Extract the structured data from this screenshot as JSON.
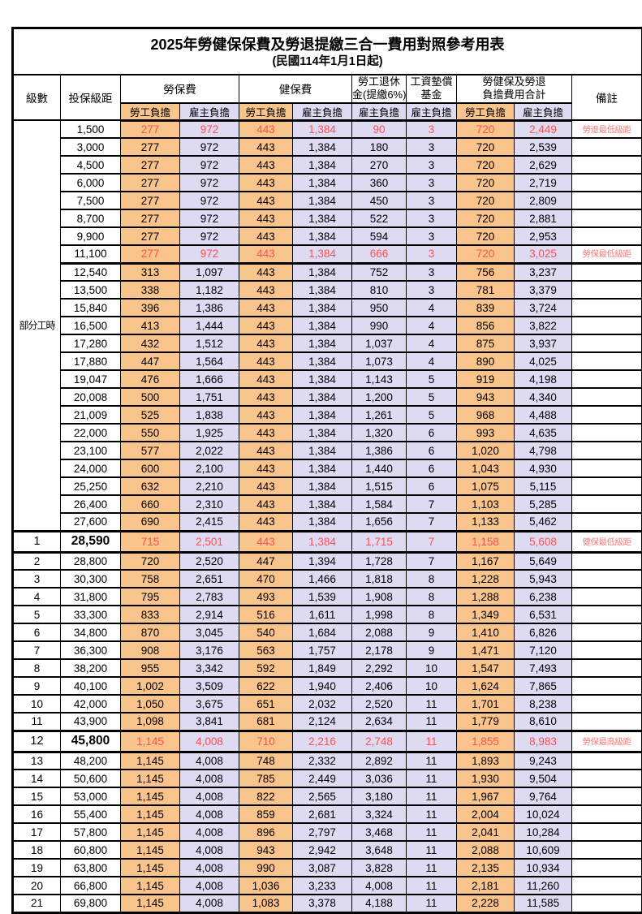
{
  "page": {
    "title_line1": "2025年勞健保保費及勞退提繳三合一費用對照參考用表",
    "title_line2": "(民國114年1月1日起)"
  },
  "columns": {
    "level": "級數",
    "bracket": "投保級距",
    "labor_fee": "勞保費",
    "health_fee": "健保費",
    "pension_line1": "勞工退休",
    "pension_line2": "金(提繳6%)",
    "wage_fund_line1": "工資墊償",
    "wage_fund_line2": "基金",
    "total_line1": "勞健保及勞退",
    "total_line2": "負擔費用合計",
    "remark": "備註",
    "employee_label": "勞工負擔",
    "employer_label": "雇主負擔"
  },
  "part_time": {
    "label": "部分工時",
    "row_span": 23
  },
  "colors": {
    "employee_bg": "#F9C38C",
    "employer_bg": "#DDDAF2",
    "highlight_text": "#FF5050",
    "remark_text": "#F37C7C"
  },
  "rows": [
    {
      "level": "",
      "bracket": "1,500",
      "cells": [
        "277",
        "972",
        "443",
        "1,384",
        "90",
        "3",
        "720",
        "2,449"
      ],
      "remark": "勞退最低級距",
      "red": true
    },
    {
      "level": "",
      "bracket": "3,000",
      "cells": [
        "277",
        "972",
        "443",
        "1,384",
        "180",
        "3",
        "720",
        "2,539"
      ],
      "remark": ""
    },
    {
      "level": "",
      "bracket": "4,500",
      "cells": [
        "277",
        "972",
        "443",
        "1,384",
        "270",
        "3",
        "720",
        "2,629"
      ],
      "remark": ""
    },
    {
      "level": "",
      "bracket": "6,000",
      "cells": [
        "277",
        "972",
        "443",
        "1,384",
        "360",
        "3",
        "720",
        "2,719"
      ],
      "remark": ""
    },
    {
      "level": "",
      "bracket": "7,500",
      "cells": [
        "277",
        "972",
        "443",
        "1,384",
        "450",
        "3",
        "720",
        "2,809"
      ],
      "remark": ""
    },
    {
      "level": "",
      "bracket": "8,700",
      "cells": [
        "277",
        "972",
        "443",
        "1,384",
        "522",
        "3",
        "720",
        "2,881"
      ],
      "remark": ""
    },
    {
      "level": "",
      "bracket": "9,900",
      "cells": [
        "277",
        "972",
        "443",
        "1,384",
        "594",
        "3",
        "720",
        "2,953"
      ],
      "remark": ""
    },
    {
      "level": "",
      "bracket": "11,100",
      "cells": [
        "277",
        "972",
        "443",
        "1,384",
        "666",
        "3",
        "720",
        "3,025"
      ],
      "remark": "勞保最低級距",
      "red": true,
      "thick": true
    },
    {
      "level": "",
      "bracket": "12,540",
      "cells": [
        "313",
        "1,097",
        "443",
        "1,384",
        "752",
        "3",
        "756",
        "3,237"
      ],
      "remark": ""
    },
    {
      "level": "",
      "bracket": "13,500",
      "cells": [
        "338",
        "1,182",
        "443",
        "1,384",
        "810",
        "3",
        "781",
        "3,379"
      ],
      "remark": ""
    },
    {
      "level": "",
      "bracket": "15,840",
      "cells": [
        "396",
        "1,386",
        "443",
        "1,384",
        "950",
        "4",
        "839",
        "3,724"
      ],
      "remark": ""
    },
    {
      "level": "",
      "bracket": "16,500",
      "cells": [
        "413",
        "1,444",
        "443",
        "1,384",
        "990",
        "4",
        "856",
        "3,822"
      ],
      "remark": ""
    },
    {
      "level": "",
      "bracket": "17,280",
      "cells": [
        "432",
        "1,512",
        "443",
        "1,384",
        "1,037",
        "4",
        "875",
        "3,937"
      ],
      "remark": ""
    },
    {
      "level": "",
      "bracket": "17,880",
      "cells": [
        "447",
        "1,564",
        "443",
        "1,384",
        "1,073",
        "4",
        "890",
        "4,025"
      ],
      "remark": ""
    },
    {
      "level": "",
      "bracket": "19,047",
      "cells": [
        "476",
        "1,666",
        "443",
        "1,384",
        "1,143",
        "5",
        "919",
        "4,198"
      ],
      "remark": ""
    },
    {
      "level": "",
      "bracket": "20,008",
      "cells": [
        "500",
        "1,751",
        "443",
        "1,384",
        "1,200",
        "5",
        "943",
        "4,340"
      ],
      "remark": ""
    },
    {
      "level": "",
      "bracket": "21,009",
      "cells": [
        "525",
        "1,838",
        "443",
        "1,384",
        "1,261",
        "5",
        "968",
        "4,488"
      ],
      "remark": ""
    },
    {
      "level": "",
      "bracket": "22,000",
      "cells": [
        "550",
        "1,925",
        "443",
        "1,384",
        "1,320",
        "6",
        "993",
        "4,635"
      ],
      "remark": ""
    },
    {
      "level": "",
      "bracket": "23,100",
      "cells": [
        "577",
        "2,022",
        "443",
        "1,384",
        "1,386",
        "6",
        "1,020",
        "4,798"
      ],
      "remark": ""
    },
    {
      "level": "",
      "bracket": "24,000",
      "cells": [
        "600",
        "2,100",
        "443",
        "1,384",
        "1,440",
        "6",
        "1,043",
        "4,930"
      ],
      "remark": ""
    },
    {
      "level": "",
      "bracket": "25,250",
      "cells": [
        "632",
        "2,210",
        "443",
        "1,384",
        "1,515",
        "6",
        "1,075",
        "5,115"
      ],
      "remark": ""
    },
    {
      "level": "",
      "bracket": "26,400",
      "cells": [
        "660",
        "2,310",
        "443",
        "1,384",
        "1,584",
        "7",
        "1,103",
        "5,285"
      ],
      "remark": ""
    },
    {
      "level": "",
      "bracket": "27,600",
      "cells": [
        "690",
        "2,415",
        "443",
        "1,384",
        "1,656",
        "7",
        "1,133",
        "5,462"
      ],
      "remark": ""
    },
    {
      "level": "1",
      "bracket": "28,590",
      "cells": [
        "715",
        "2,501",
        "443",
        "1,384",
        "1,715",
        "7",
        "1,158",
        "5,608"
      ],
      "remark": "健保最低級距",
      "red": true,
      "major": true
    },
    {
      "level": "2",
      "bracket": "28,800",
      "cells": [
        "720",
        "2,520",
        "447",
        "1,394",
        "1,728",
        "7",
        "1,167",
        "5,649"
      ],
      "remark": ""
    },
    {
      "level": "3",
      "bracket": "30,300",
      "cells": [
        "758",
        "2,651",
        "470",
        "1,466",
        "1,818",
        "8",
        "1,228",
        "5,943"
      ],
      "remark": ""
    },
    {
      "level": "4",
      "bracket": "31,800",
      "cells": [
        "795",
        "2,783",
        "493",
        "1,539",
        "1,908",
        "8",
        "1,288",
        "6,238"
      ],
      "remark": ""
    },
    {
      "level": "5",
      "bracket": "33,300",
      "cells": [
        "833",
        "2,914",
        "516",
        "1,611",
        "1,998",
        "8",
        "1,349",
        "6,531"
      ],
      "remark": ""
    },
    {
      "level": "6",
      "bracket": "34,800",
      "cells": [
        "870",
        "3,045",
        "540",
        "1,684",
        "2,088",
        "9",
        "1,410",
        "6,826"
      ],
      "remark": ""
    },
    {
      "level": "7",
      "bracket": "36,300",
      "cells": [
        "908",
        "3,176",
        "563",
        "1,757",
        "2,178",
        "9",
        "1,471",
        "7,120"
      ],
      "remark": ""
    },
    {
      "level": "8",
      "bracket": "38,200",
      "cells": [
        "955",
        "3,342",
        "592",
        "1,849",
        "2,292",
        "10",
        "1,547",
        "7,493"
      ],
      "remark": ""
    },
    {
      "level": "9",
      "bracket": "40,100",
      "cells": [
        "1,002",
        "3,509",
        "622",
        "1,940",
        "2,406",
        "10",
        "1,624",
        "7,865"
      ],
      "remark": ""
    },
    {
      "level": "10",
      "bracket": "42,000",
      "cells": [
        "1,050",
        "3,675",
        "651",
        "2,032",
        "2,520",
        "11",
        "1,701",
        "8,238"
      ],
      "remark": ""
    },
    {
      "level": "11",
      "bracket": "43,900",
      "cells": [
        "1,098",
        "3,841",
        "681",
        "2,124",
        "2,634",
        "11",
        "1,779",
        "8,610"
      ],
      "remark": ""
    },
    {
      "level": "12",
      "bracket": "45,800",
      "cells": [
        "1,145",
        "4,008",
        "710",
        "2,216",
        "2,748",
        "11",
        "1,855",
        "8,983"
      ],
      "remark": "勞保最高級距",
      "red": true,
      "major": true
    },
    {
      "level": "13",
      "bracket": "48,200",
      "cells": [
        "1,145",
        "4,008",
        "748",
        "2,332",
        "2,892",
        "11",
        "1,893",
        "9,243"
      ],
      "remark": ""
    },
    {
      "level": "14",
      "bracket": "50,600",
      "cells": [
        "1,145",
        "4,008",
        "785",
        "2,449",
        "3,036",
        "11",
        "1,930",
        "9,504"
      ],
      "remark": ""
    },
    {
      "level": "15",
      "bracket": "53,000",
      "cells": [
        "1,145",
        "4,008",
        "822",
        "2,565",
        "3,180",
        "11",
        "1,967",
        "9,764"
      ],
      "remark": ""
    },
    {
      "level": "16",
      "bracket": "55,400",
      "cells": [
        "1,145",
        "4,008",
        "859",
        "2,681",
        "3,324",
        "11",
        "2,004",
        "10,024"
      ],
      "remark": ""
    },
    {
      "level": "17",
      "bracket": "57,800",
      "cells": [
        "1,145",
        "4,008",
        "896",
        "2,797",
        "3,468",
        "11",
        "2,041",
        "10,284"
      ],
      "remark": ""
    },
    {
      "level": "18",
      "bracket": "60,800",
      "cells": [
        "1,145",
        "4,008",
        "943",
        "2,942",
        "3,648",
        "11",
        "2,088",
        "10,609"
      ],
      "remark": ""
    },
    {
      "level": "19",
      "bracket": "63,800",
      "cells": [
        "1,145",
        "4,008",
        "990",
        "3,087",
        "3,828",
        "11",
        "2,135",
        "10,934"
      ],
      "remark": ""
    },
    {
      "level": "20",
      "bracket": "66,800",
      "cells": [
        "1,145",
        "4,008",
        "1,036",
        "3,233",
        "4,008",
        "11",
        "2,181",
        "11,260"
      ],
      "remark": ""
    },
    {
      "level": "21",
      "bracket": "69,800",
      "cells": [
        "1,145",
        "4,008",
        "1,083",
        "3,378",
        "4,188",
        "11",
        "2,228",
        "11,585"
      ],
      "remark": ""
    }
  ]
}
